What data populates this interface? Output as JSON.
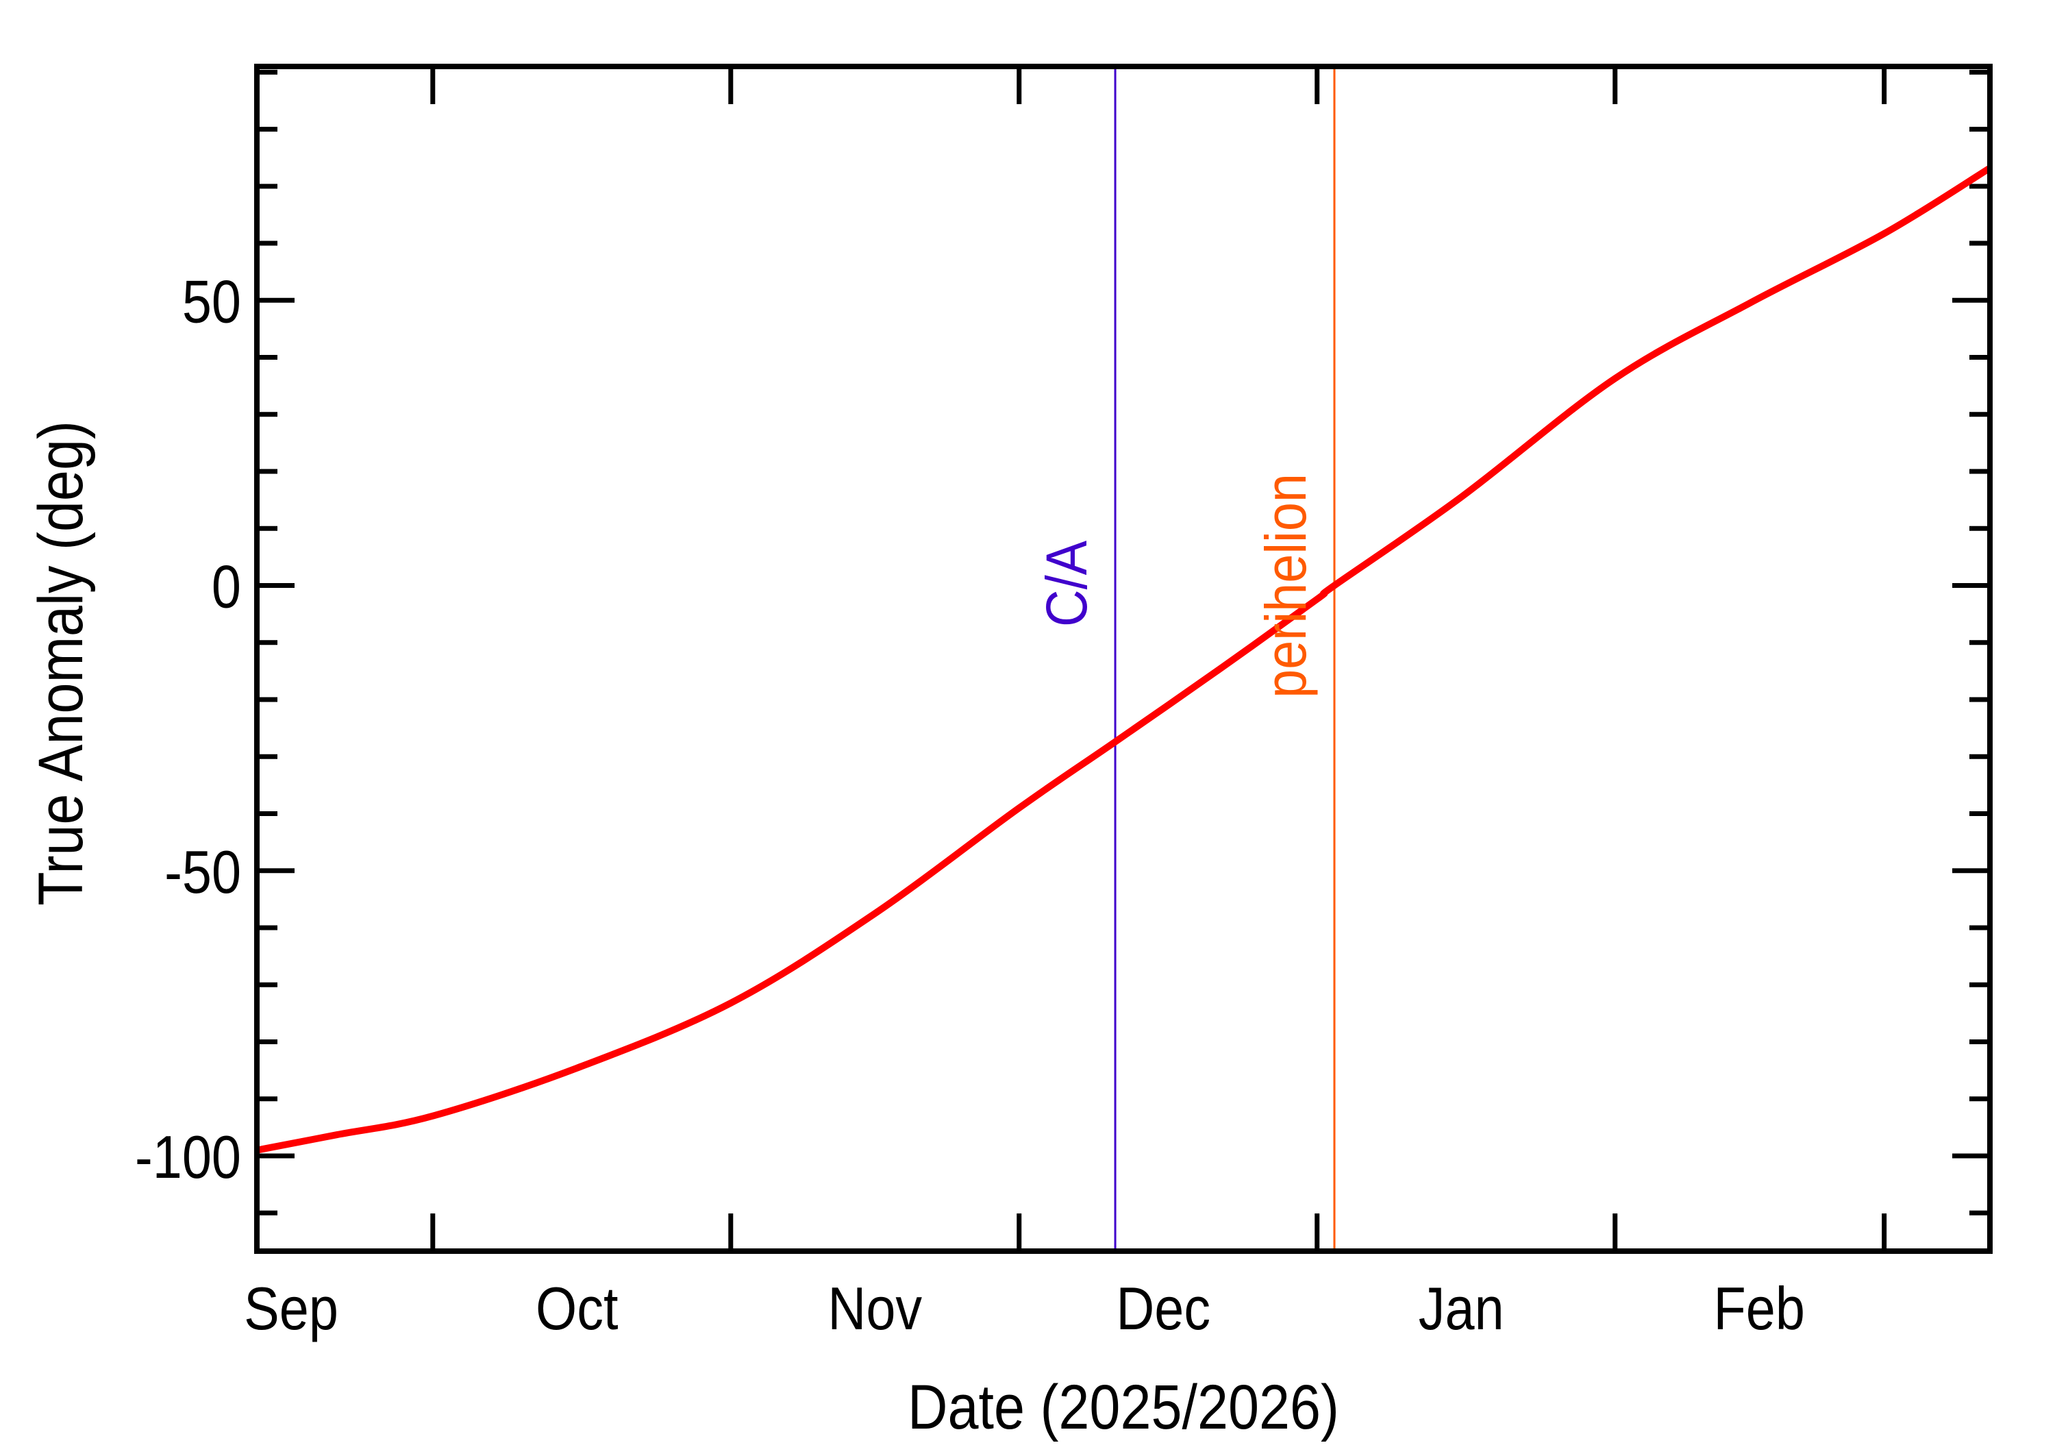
{
  "chart_data": {
    "type": "line",
    "title": "",
    "xlabel": "Date (2025/2026)",
    "ylabel": "True Anomaly (deg)",
    "x_unit": "days since 2025-10-01",
    "xlim": [
      -18.3,
      162.0
    ],
    "ylim": [
      -116.7,
      91.0
    ],
    "grid": false,
    "legend": null,
    "x_major_ticks": [
      {
        "day": 0,
        "date": "2025-10-01"
      },
      {
        "day": 31,
        "date": "2025-11-01"
      },
      {
        "day": 61,
        "date": "2025-12-01"
      },
      {
        "day": 92,
        "date": "2026-01-01"
      },
      {
        "day": 123,
        "date": "2026-02-01"
      },
      {
        "day": 151,
        "date": "2026-03-01"
      }
    ],
    "x_tick_labels": [
      {
        "label": "Sep",
        "day": -15
      },
      {
        "label": "Oct",
        "day": 15
      },
      {
        "label": "Nov",
        "day": 46
      },
      {
        "label": "Dec",
        "day": 76
      },
      {
        "label": "Jan",
        "day": 107
      },
      {
        "label": "Feb",
        "day": 138
      }
    ],
    "y_major_ticks": [
      -100,
      -50,
      0,
      50
    ],
    "y_tick_labels": [
      "-100",
      "-50",
      "0",
      "50"
    ],
    "y_minor_step": 10,
    "series": [
      {
        "name": "True Anomaly",
        "color": "#ff0000",
        "x": [
          -18.3,
          -10,
          0,
          15,
          31,
          46,
          61,
          71,
          82,
          92,
          93.8,
          107,
          123,
          137,
          151,
          162
        ],
        "y": [
          -99.0,
          -96.3,
          -93.0,
          -84.6,
          -73.2,
          -57.5,
          -39.0,
          -27.4,
          -14.5,
          -2.4,
          0.0,
          15.5,
          36.3,
          49.5,
          61.7,
          73.2
        ]
      }
    ],
    "annotations": [
      {
        "label": "C/A",
        "day": 71,
        "color": "#4000cc",
        "value": -27.4
      },
      {
        "label": "perihelion",
        "day": 93.8,
        "color": "#ff5a00",
        "value": 0.0
      }
    ]
  }
}
